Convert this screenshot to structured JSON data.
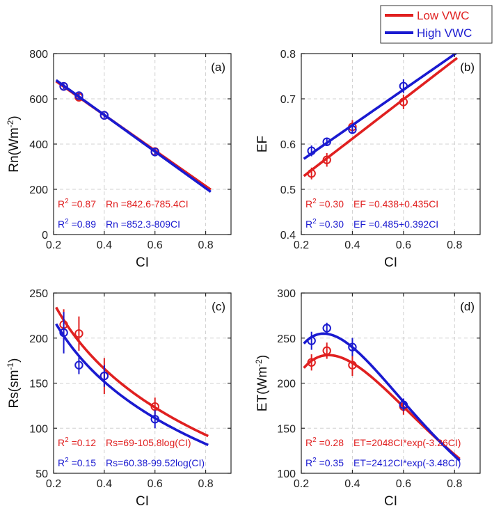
{
  "legend": {
    "items": [
      {
        "label": "Low VWC",
        "color": "#e02020"
      },
      {
        "label": "High VWC",
        "color": "#1a1ad0"
      }
    ],
    "placement": "top-right"
  },
  "colors": {
    "low": "#e02020",
    "high": "#1a1ad0",
    "grid": "#d0d0d0",
    "axis": "#262626"
  },
  "chart_data": [
    {
      "type": "line",
      "panel_label": "(a)",
      "xlabel": "CI",
      "ylabel": "Rn(Wm-2)",
      "ylabel_base": "Rn(Wm",
      "ylabel_sup": "-2",
      "ylabel_close": ")",
      "xlim": [
        0.2,
        0.9
      ],
      "ylim": [
        0,
        800
      ],
      "xticks": [
        0.2,
        0.4,
        0.6,
        0.8
      ],
      "yticks": [
        0,
        200,
        400,
        600,
        800
      ],
      "xtick_labels": [
        "0.2",
        "0.4",
        "0.6",
        "0.8"
      ],
      "ytick_labels": [
        "0",
        "200",
        "400",
        "600",
        "800"
      ],
      "grid": true,
      "series": [
        {
          "name": "Low VWC",
          "key": "low",
          "points": [
            {
              "x": 0.24,
              "y": 655,
              "err": 12
            },
            {
              "x": 0.3,
              "y": 607,
              "err": 12
            },
            {
              "x": 0.4,
              "y": 527,
              "err": 10
            },
            {
              "x": 0.6,
              "y": 367,
              "err": 12
            }
          ],
          "fit": {
            "model": "linear",
            "a": 842.6,
            "b": -785.4,
            "x": [
              0.21,
              0.82
            ]
          },
          "r2_label": "R",
          "r2_sup": "2",
          "r2_value": "=0.87",
          "equation": "Rn =842.6-785.4CI"
        },
        {
          "name": "High VWC",
          "key": "high",
          "points": [
            {
              "x": 0.24,
              "y": 655,
              "err": 12
            },
            {
              "x": 0.3,
              "y": 614,
              "err": 12
            },
            {
              "x": 0.4,
              "y": 527,
              "err": 10
            },
            {
              "x": 0.6,
              "y": 365,
              "err": 12
            }
          ],
          "fit": {
            "model": "linear",
            "a": 852.3,
            "b": -809,
            "x": [
              0.21,
              0.82
            ]
          },
          "r2_label": "R",
          "r2_sup": "2",
          "r2_value": "=0.89",
          "equation": "Rn =852.3-809CI"
        }
      ]
    },
    {
      "type": "line",
      "panel_label": "(b)",
      "xlabel": "CI",
      "ylabel": "EF",
      "ylabel_base": "EF",
      "ylabel_sup": "",
      "ylabel_close": "",
      "xlim": [
        0.2,
        0.9
      ],
      "ylim": [
        0.4,
        0.8
      ],
      "xticks": [
        0.2,
        0.4,
        0.6,
        0.8
      ],
      "yticks": [
        0.4,
        0.5,
        0.6,
        0.7,
        0.8
      ],
      "xtick_labels": [
        "0.2",
        "0.4",
        "0.6",
        "0.8"
      ],
      "ytick_labels": [
        "0.4",
        "0.5",
        "0.6",
        "0.7",
        "0.8"
      ],
      "grid": true,
      "series": [
        {
          "name": "Low VWC",
          "key": "low",
          "points": [
            {
              "x": 0.24,
              "y": 0.535,
              "err": 0.013
            },
            {
              "x": 0.3,
              "y": 0.565,
              "err": 0.015
            },
            {
              "x": 0.4,
              "y": 0.638,
              "err": 0.015
            },
            {
              "x": 0.6,
              "y": 0.693,
              "err": 0.016
            }
          ],
          "fit": {
            "model": "linear",
            "a": 0.438,
            "b": 0.435,
            "x": [
              0.21,
              0.81
            ]
          },
          "r2_label": "R",
          "r2_sup": "2",
          "r2_value": "=0.30",
          "equation": "EF =0.438+0.435CI"
        },
        {
          "name": "High VWC",
          "key": "high",
          "points": [
            {
              "x": 0.24,
              "y": 0.585,
              "err": 0.012
            },
            {
              "x": 0.3,
              "y": 0.605,
              "err": 0.008
            },
            {
              "x": 0.4,
              "y": 0.632,
              "err": 0.01
            },
            {
              "x": 0.6,
              "y": 0.728,
              "err": 0.015
            }
          ],
          "fit": {
            "model": "linear",
            "a": 0.485,
            "b": 0.392,
            "x": [
              0.21,
              0.81
            ]
          },
          "r2_label": "R",
          "r2_sup": "2",
          "r2_value": "=0.30",
          "equation": "EF =0.485+0.392CI"
        }
      ]
    },
    {
      "type": "line",
      "panel_label": "(c)",
      "xlabel": "CI",
      "ylabel": "Rs(sm-1)",
      "ylabel_base": "Rs(sm",
      "ylabel_sup": "-1",
      "ylabel_close": ")",
      "xlim": [
        0.2,
        0.9
      ],
      "ylim": [
        50,
        250
      ],
      "xticks": [
        0.2,
        0.4,
        0.6,
        0.8
      ],
      "yticks": [
        50,
        100,
        150,
        200,
        250
      ],
      "xtick_labels": [
        "0.2",
        "0.4",
        "0.6",
        "0.8"
      ],
      "ytick_labels": [
        "50",
        "100",
        "150",
        "200",
        "250"
      ],
      "grid": true,
      "series": [
        {
          "name": "Low VWC",
          "key": "low",
          "points": [
            {
              "x": 0.24,
              "y": 215,
              "err": 17
            },
            {
              "x": 0.3,
              "y": 205,
              "err": 19
            },
            {
              "x": 0.4,
              "y": 158,
              "err": 20
            },
            {
              "x": 0.6,
              "y": 124,
              "err": 10
            }
          ],
          "fit": {
            "model": "log",
            "a": 69,
            "b": -105.8,
            "x": [
              0.21,
              0.81
            ]
          },
          "r2_label": "R",
          "r2_sup": "2",
          "r2_value": "=0.12",
          "equation": "Rs=69-105.8log(CI)"
        },
        {
          "name": "High VWC",
          "key": "high",
          "points": [
            {
              "x": 0.24,
              "y": 206,
              "err": 23
            },
            {
              "x": 0.3,
              "y": 170,
              "err": 10
            },
            {
              "x": 0.4,
              "y": 158,
              "err": 12
            },
            {
              "x": 0.6,
              "y": 110,
              "err": 10
            }
          ],
          "fit": {
            "model": "log",
            "a": 60.38,
            "b": -99.52,
            "x": [
              0.21,
              0.81
            ]
          },
          "r2_label": "R",
          "r2_sup": "2",
          "r2_value": "=0.15",
          "equation": "Rs=60.38-99.52log(CI)"
        }
      ]
    },
    {
      "type": "line",
      "panel_label": "(d)",
      "xlabel": "CI",
      "ylabel": "ET(Wm-2)",
      "ylabel_base": "ET(Wm",
      "ylabel_sup": "-2",
      "ylabel_close": ")",
      "xlim": [
        0.2,
        0.9
      ],
      "ylim": [
        100,
        300
      ],
      "xticks": [
        0.2,
        0.4,
        0.6,
        0.8
      ],
      "yticks": [
        100,
        150,
        200,
        250,
        300
      ],
      "xtick_labels": [
        "0.2",
        "0.4",
        "0.6",
        "0.8"
      ],
      "ytick_labels": [
        "100",
        "150",
        "200",
        "250",
        "300"
      ],
      "grid": true,
      "series": [
        {
          "name": "Low VWC",
          "key": "low",
          "points": [
            {
              "x": 0.24,
              "y": 223,
              "err": 9
            },
            {
              "x": 0.3,
              "y": 236,
              "err": 9
            },
            {
              "x": 0.4,
              "y": 220,
              "err": 12
            },
            {
              "x": 0.6,
              "y": 174,
              "err": 9
            }
          ],
          "fit": {
            "model": "exp",
            "a": 2048,
            "b": -3.26,
            "x": [
              0.21,
              0.82
            ]
          },
          "r2_label": "R",
          "r2_sup": "2",
          "r2_value": "=0.28",
          "equation": "ET=2048CI*exp(-3.26CI)"
        },
        {
          "name": "High VWC",
          "key": "high",
          "points": [
            {
              "x": 0.24,
              "y": 247,
              "err": 10
            },
            {
              "x": 0.3,
              "y": 261,
              "err": 6
            },
            {
              "x": 0.4,
              "y": 240,
              "err": 10
            },
            {
              "x": 0.6,
              "y": 176,
              "err": 7
            }
          ],
          "fit": {
            "model": "exp",
            "a": 2412,
            "b": -3.48,
            "x": [
              0.21,
              0.82
            ]
          },
          "r2_label": "R",
          "r2_sup": "2",
          "r2_value": "=0.35",
          "equation": "ET=2412CI*exp(-3.48CI)"
        }
      ]
    }
  ]
}
